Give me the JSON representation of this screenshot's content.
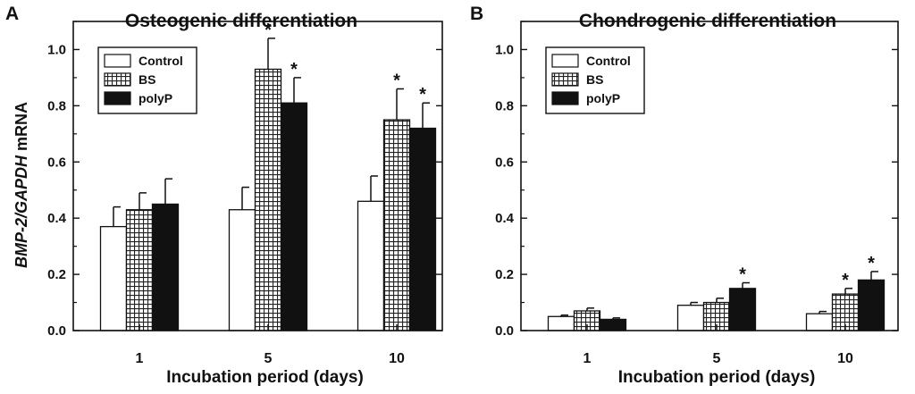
{
  "chart_data": [
    {
      "type": "bar",
      "panel": "A",
      "title": "Osteogenic differentiation",
      "xlabel": "Incubation period (days)",
      "ylabel_italic": "BMP-2/GAPDH",
      "ylabel_rest": " mRNA",
      "categories": [
        "1",
        "5",
        "10"
      ],
      "ylim": [
        0,
        1.1
      ],
      "yticks": [
        0.0,
        0.2,
        0.4,
        0.6,
        0.8,
        1.0
      ],
      "ytick_labels": [
        "0.0",
        "0.2",
        "0.4",
        "0.6",
        "0.8",
        "1.0"
      ],
      "legend": "top-left",
      "series": [
        {
          "name": "Control",
          "pattern": "white",
          "values": [
            0.37,
            0.43,
            0.46
          ],
          "errors": [
            0.07,
            0.08,
            0.09
          ],
          "significant": [
            false,
            false,
            false
          ]
        },
        {
          "name": "BS",
          "pattern": "grid",
          "values": [
            0.43,
            0.93,
            0.75
          ],
          "errors": [
            0.06,
            0.11,
            0.11
          ],
          "significant": [
            false,
            true,
            true
          ]
        },
        {
          "name": "polyP",
          "pattern": "black",
          "values": [
            0.45,
            0.81,
            0.72
          ],
          "errors": [
            0.09,
            0.09,
            0.09
          ],
          "significant": [
            false,
            true,
            true
          ]
        }
      ],
      "significance_marker": "*"
    },
    {
      "type": "bar",
      "panel": "B",
      "title": "Chondrogenic differentiation",
      "xlabel": "Incubation period (days)",
      "categories": [
        "1",
        "5",
        "10"
      ],
      "ylim": [
        0,
        1.1
      ],
      "yticks": [
        0.0,
        0.2,
        0.4,
        0.6,
        0.8,
        1.0
      ],
      "ytick_labels": [
        "0.0",
        "0.2",
        "0.4",
        "0.6",
        "0.8",
        "1.0"
      ],
      "legend": "top-left",
      "series": [
        {
          "name": "Control",
          "pattern": "white",
          "values": [
            0.05,
            0.09,
            0.06
          ],
          "errors": [
            0.005,
            0.01,
            0.008
          ],
          "significant": [
            false,
            false,
            false
          ]
        },
        {
          "name": "BS",
          "pattern": "grid",
          "values": [
            0.07,
            0.1,
            0.13
          ],
          "errors": [
            0.01,
            0.015,
            0.02
          ],
          "significant": [
            false,
            false,
            true
          ]
        },
        {
          "name": "polyP",
          "pattern": "black",
          "values": [
            0.04,
            0.15,
            0.18
          ],
          "errors": [
            0.005,
            0.02,
            0.03
          ],
          "significant": [
            false,
            true,
            true
          ]
        }
      ],
      "significance_marker": "*"
    }
  ]
}
